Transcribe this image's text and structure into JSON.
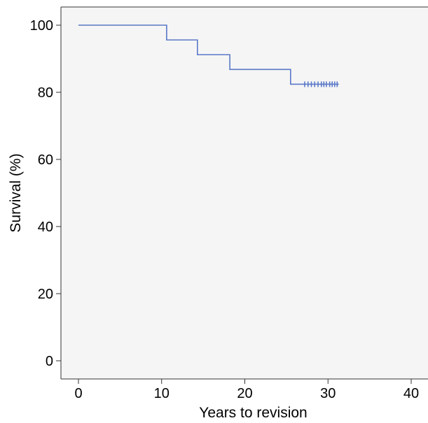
{
  "chart_data": {
    "type": "line",
    "subtype": "kaplan-meier-survival",
    "title": "",
    "xlabel": "Years to revision",
    "ylabel": "Survival (%)",
    "xlim": [
      0,
      40
    ],
    "ylim": [
      0,
      100
    ],
    "x_ticks": [
      0,
      10,
      20,
      30,
      40
    ],
    "y_ticks": [
      0,
      20,
      40,
      60,
      80,
      100
    ],
    "grid": false,
    "legend": "none",
    "colors": {
      "plot_background": "#f5f5f5",
      "axis": "#333333",
      "series": "#5b78c7"
    },
    "series": [
      {
        "steps": [
          {
            "x": 0,
            "y": 100
          },
          {
            "x": 10.6,
            "y": 95.6
          },
          {
            "x": 14.3,
            "y": 91.2
          },
          {
            "x": 18.2,
            "y": 86.8
          },
          {
            "x": 25.5,
            "y": 82.4
          }
        ],
        "x_end": 31.3,
        "censored": [
          27.2,
          27.6,
          28.0,
          28.4,
          28.8,
          29.2,
          29.5,
          29.8,
          30.2,
          30.5,
          30.8,
          31.1
        ]
      }
    ]
  }
}
